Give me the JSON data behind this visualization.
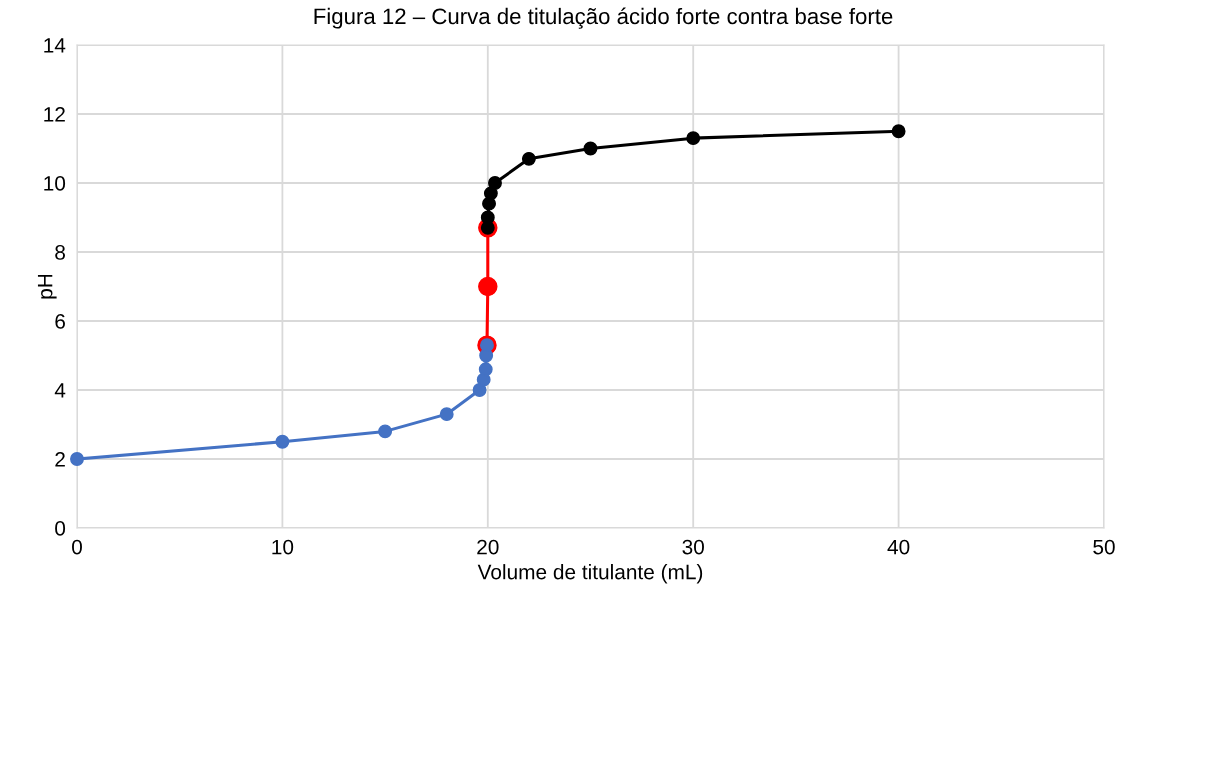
{
  "chart_data": {
    "type": "line",
    "title": "Figura 12 – Curva de titulação ácido forte contra base forte",
    "xlabel": "Volume de titulante (mL)",
    "ylabel": "pH",
    "series": [
      {
        "color": "#4472c4",
        "x": [
          0,
          10,
          15,
          18,
          19.6,
          19.8,
          19.9,
          19.92,
          19.96
        ],
        "values": [
          2.0,
          2.5,
          2.8,
          3.3,
          4.0,
          4.3,
          4.6,
          5.0,
          5.3
        ]
      },
      {
        "color": "#ff0000",
        "x": [
          19.96,
          20,
          20.0
        ],
        "values": [
          5.3,
          7.0,
          8.7
        ]
      },
      {
        "color": "#000000",
        "x": [
          20.0,
          20.0,
          20.06,
          20.15,
          20.35,
          22,
          25,
          30,
          40
        ],
        "values": [
          8.7,
          9.0,
          9.4,
          9.7,
          10.0,
          10.7,
          11.0,
          11.3,
          11.5
        ]
      }
    ],
    "xlim": [
      0,
      50
    ],
    "xticks": [
      0,
      10,
      20,
      30,
      40,
      50
    ],
    "ylim": [
      0,
      14
    ],
    "yticks": [
      0,
      2,
      4,
      6,
      8,
      10,
      12,
      14
    ],
    "grid": true,
    "marker": "circle",
    "line_style": "solid",
    "legend": false
  }
}
